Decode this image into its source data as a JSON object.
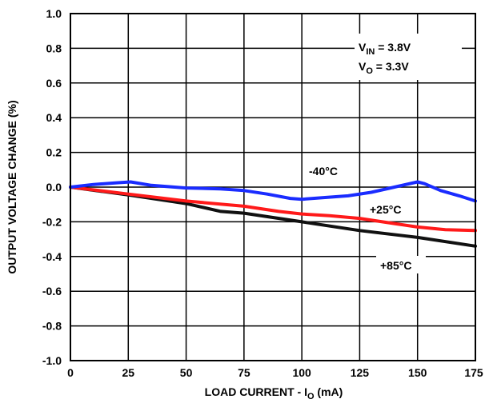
{
  "chart_data": {
    "type": "line",
    "title": "",
    "xlabel": "LOAD CURRENT - I",
    "xlabel_sub": "O",
    "xlabel_unit": " (mA)",
    "ylabel": "OUTPUT VOLTAGE CHANGE (%)",
    "xlim": [
      0,
      175
    ],
    "ylim": [
      -1.0,
      1.0
    ],
    "grid": true,
    "x_ticks": [
      0,
      25,
      50,
      75,
      100,
      125,
      150,
      175
    ],
    "x_tick_labels": [
      "0",
      "25",
      "50",
      "75",
      "100",
      "125",
      "150",
      "175"
    ],
    "y_ticks": [
      -1.0,
      -0.8,
      -0.6,
      -0.4,
      -0.2,
      0.0,
      0.2,
      0.4,
      0.6,
      0.8,
      1.0
    ],
    "y_tick_labels": [
      "-1.0",
      "-0.8",
      "-0.6",
      "-0.4",
      "-0.2",
      "0.0",
      "0.2",
      "0.4",
      "0.6",
      "0.8",
      "1.0"
    ],
    "series": [
      {
        "label": "-40°C",
        "color": "#1a2cff",
        "x": [
          0,
          10,
          20,
          26,
          35,
          50,
          65,
          75,
          85,
          95,
          100,
          110,
          120,
          130,
          140,
          145,
          150,
          153,
          160,
          168,
          175
        ],
        "y": [
          0.0,
          0.015,
          0.025,
          0.03,
          0.01,
          -0.005,
          -0.01,
          -0.02,
          -0.04,
          -0.065,
          -0.07,
          -0.06,
          -0.05,
          -0.03,
          0.0,
          0.015,
          0.03,
          0.02,
          -0.02,
          -0.05,
          -0.08
        ]
      },
      {
        "label": "+25°C",
        "color": "#ff1a1a",
        "x": [
          0,
          25,
          50,
          75,
          90,
          100,
          112,
          125,
          140,
          150,
          162,
          175
        ],
        "y": [
          0.0,
          -0.04,
          -0.08,
          -0.11,
          -0.14,
          -0.155,
          -0.165,
          -0.18,
          -0.21,
          -0.23,
          -0.245,
          -0.25
        ]
      },
      {
        "label": "+85°C",
        "color": "#111111",
        "x": [
          0,
          25,
          50,
          65,
          75,
          100,
          125,
          150,
          175
        ],
        "y": [
          0.0,
          -0.045,
          -0.095,
          -0.14,
          -0.15,
          -0.2,
          -0.25,
          -0.29,
          -0.34
        ]
      }
    ],
    "annotation": {
      "line1": {
        "prefix": "V",
        "sub": "IN",
        "suffix": " = 3.8V"
      },
      "line2": {
        "prefix": "V",
        "sub": "O",
        "suffix": " = 3.3V"
      }
    }
  }
}
